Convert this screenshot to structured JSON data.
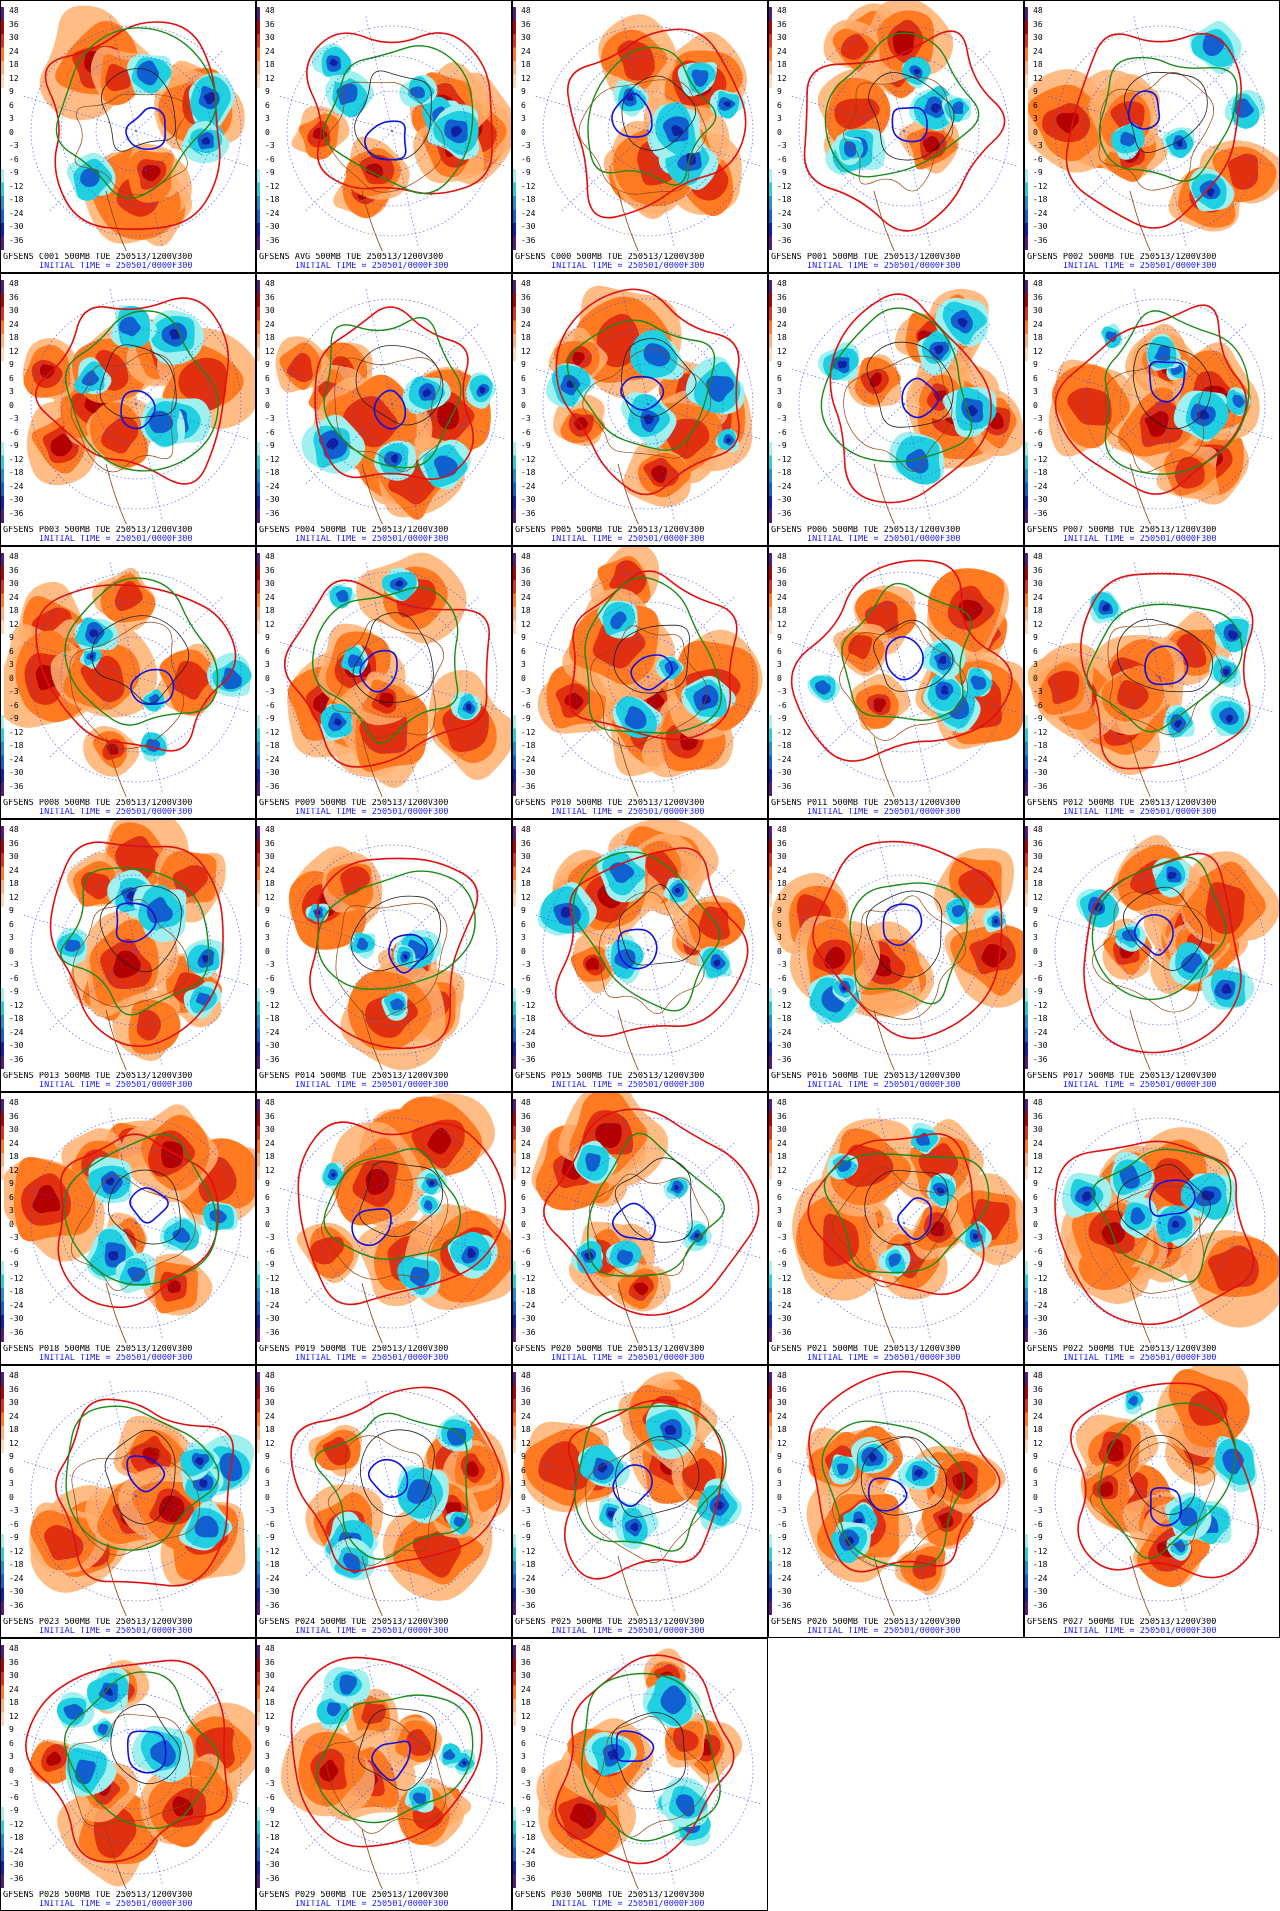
{
  "product": {
    "level_valid": "500MB TUE 250513/1200V300",
    "init_line": "INITIAL TIME = 250501/0000F300"
  },
  "scale": {
    "labels": [
      "48",
      "36",
      "30",
      "24",
      "18",
      "12",
      "9",
      "6",
      "3",
      "0",
      "-3",
      "-6",
      "-9",
      "-12",
      "-18",
      "-24",
      "-30",
      "-36"
    ],
    "colors": {
      "pos_high": "#b30000",
      "pos_mid": "#e03010",
      "pos_low": "#ff7a20",
      "pos_faint": "#ffb070",
      "neg_faint": "#a0f0f0",
      "neg_low": "#20d0e0",
      "neg_mid": "#1060d0",
      "neg_high": "#1020a0",
      "contour_green": "#1a8a1a",
      "contour_red": "#e01010",
      "contour_blue": "#1010e0",
      "contour_black": "#202020",
      "coast": "#8b4513",
      "grid_dot": "#3050ff"
    }
  },
  "panels": [
    {
      "member": "GFSENS C001"
    },
    {
      "member": "GFSENS AVG"
    },
    {
      "member": "GFSENS C000"
    },
    {
      "member": "GFSENS P001"
    },
    {
      "member": "GFSENS P002"
    },
    {
      "member": "GFSENS P003"
    },
    {
      "member": "GFSENS P004"
    },
    {
      "member": "GFSENS P005"
    },
    {
      "member": "GFSENS P006"
    },
    {
      "member": "GFSENS P007"
    },
    {
      "member": "GFSENS P008"
    },
    {
      "member": "GFSENS P009"
    },
    {
      "member": "GFSENS P010"
    },
    {
      "member": "GFSENS P011"
    },
    {
      "member": "GFSENS P012"
    },
    {
      "member": "GFSENS P013"
    },
    {
      "member": "GFSENS P014"
    },
    {
      "member": "GFSENS P015"
    },
    {
      "member": "GFSENS P016"
    },
    {
      "member": "GFSENS P017"
    },
    {
      "member": "GFSENS P018"
    },
    {
      "member": "GFSENS P019"
    },
    {
      "member": "GFSENS P020"
    },
    {
      "member": "GFSENS P021"
    },
    {
      "member": "GFSENS P022"
    },
    {
      "member": "GFSENS P023"
    },
    {
      "member": "GFSENS P024"
    },
    {
      "member": "GFSENS P025"
    },
    {
      "member": "GFSENS P026"
    },
    {
      "member": "GFSENS P027"
    },
    {
      "member": "GFSENS P028"
    },
    {
      "member": "GFSENS P029"
    },
    {
      "member": "GFSENS P030"
    }
  ]
}
